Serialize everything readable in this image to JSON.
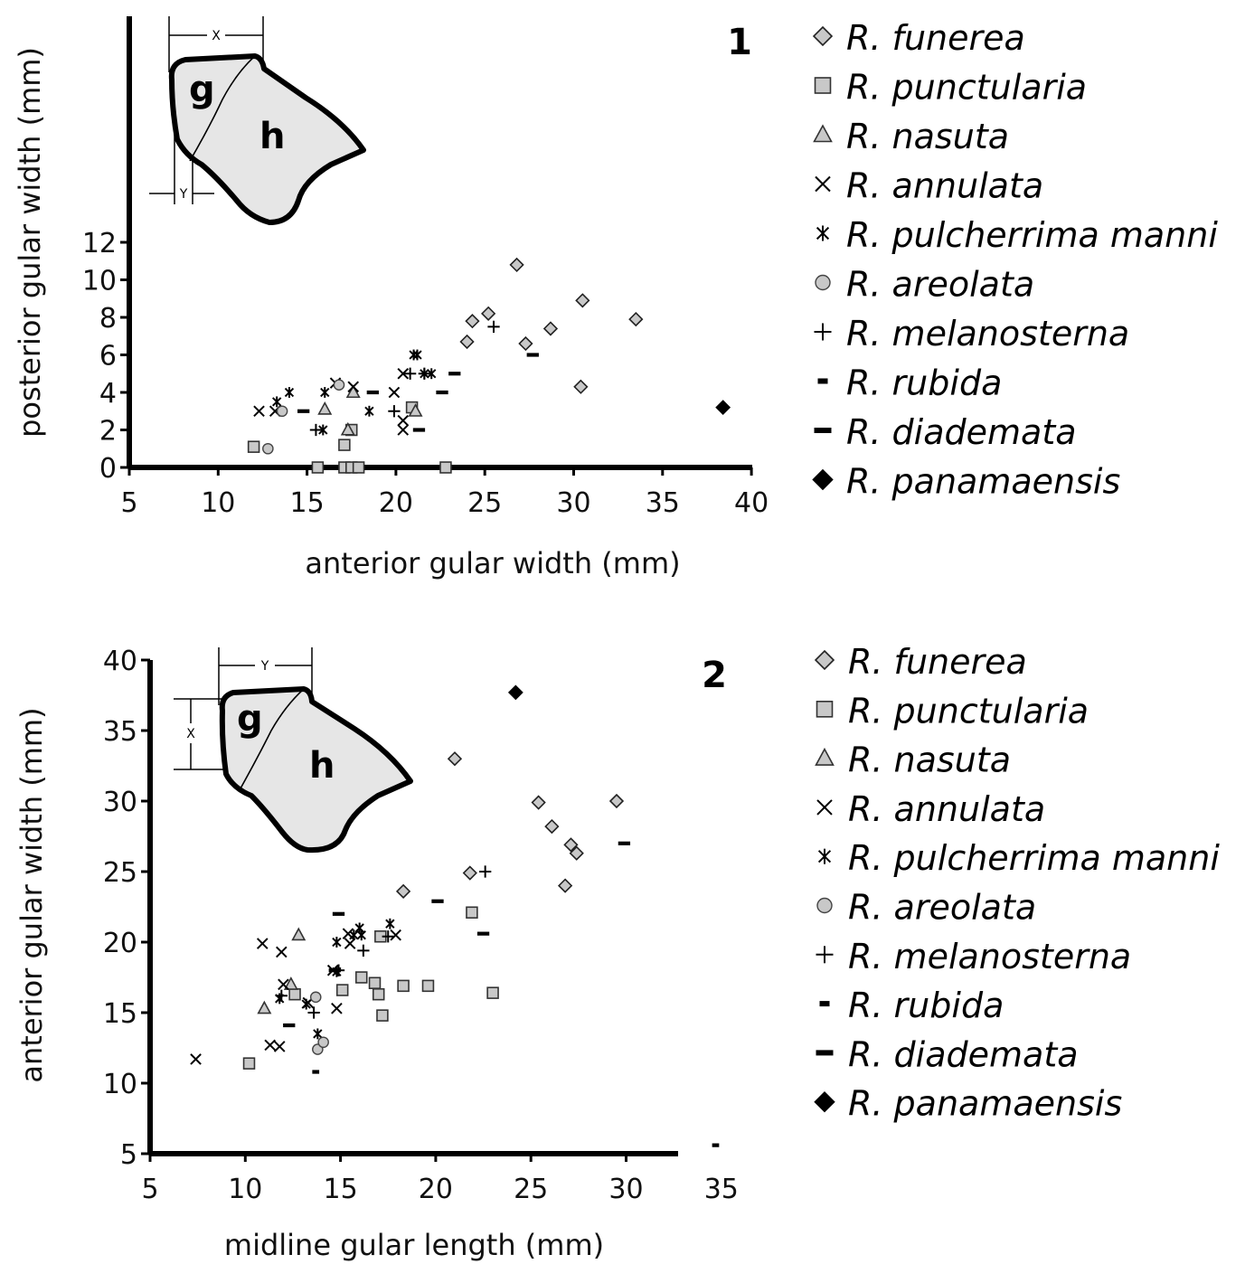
{
  "legend_labels": {
    "funerea": "R. funerea",
    "punctularia": "R. punctularia",
    "nasuta": "R. nasuta",
    "annulata": "R. annulata",
    "pulcherrima": "R. pulcherrima manni",
    "areolata": "R. areolata",
    "melanosterna": "R. melanosterna",
    "rubida": "R. rubida",
    "diademata": "R. diademata",
    "panamaensis": "R. panamaensis"
  },
  "colors": {
    "light_fill": "#c8c8c8",
    "inset_fill": "#e6e6e6",
    "dark": "#000000"
  },
  "chart_data": [
    {
      "type": "scatter",
      "panel_label": "1",
      "xlabel": "anterior gular width (mm)",
      "ylabel": "posterior gular width (mm)",
      "xlim": [
        5,
        40
      ],
      "ylim": [
        0,
        12
      ],
      "xticks": [
        5,
        10,
        15,
        20,
        25,
        30,
        35,
        40
      ],
      "yticks": [
        0,
        2,
        4,
        6,
        8,
        10,
        12
      ],
      "inset": {
        "region_labels": [
          "g",
          "h"
        ],
        "dim_labels": [
          "X",
          "Y"
        ]
      },
      "legend_position": "right",
      "series": [
        {
          "key": "funerea",
          "marker": "diamond",
          "points": [
            [
              24.3,
              7.8
            ],
            [
              25.2,
              8.2
            ],
            [
              26.8,
              10.8
            ],
            [
              24,
              6.7
            ],
            [
              27.3,
              6.6
            ],
            [
              28.7,
              7.4
            ],
            [
              30.5,
              8.9
            ],
            [
              33.5,
              7.9
            ],
            [
              30.4,
              4.3
            ]
          ]
        },
        {
          "key": "punctularia",
          "marker": "square",
          "points": [
            [
              12,
              1.1
            ],
            [
              17.1,
              1.2
            ],
            [
              17.5,
              2
            ],
            [
              20.9,
              3.2
            ],
            [
              15.6,
              0
            ],
            [
              17.1,
              0
            ],
            [
              17.5,
              0
            ],
            [
              17.9,
              0
            ],
            [
              22.8,
              0
            ]
          ]
        },
        {
          "key": "nasuta",
          "marker": "triangle",
          "points": [
            [
              16,
              3.1
            ],
            [
              17.6,
              4
            ],
            [
              17.3,
              2
            ],
            [
              21.1,
              3
            ]
          ]
        },
        {
          "key": "annulata",
          "marker": "x",
          "points": [
            [
              12.3,
              3
            ],
            [
              13.2,
              3
            ],
            [
              16.6,
              4.5
            ],
            [
              17.6,
              4.3
            ],
            [
              19.9,
              4
            ],
            [
              20.4,
              2.5
            ],
            [
              20.4,
              2
            ],
            [
              20.4,
              5
            ]
          ]
        },
        {
          "key": "pulcherrima",
          "marker": "asterisk",
          "points": [
            [
              13.3,
              3.5
            ],
            [
              14,
              4
            ],
            [
              16,
              4
            ],
            [
              15.9,
              2
            ],
            [
              18.5,
              3
            ],
            [
              21,
              6
            ],
            [
              21.2,
              6
            ],
            [
              21.6,
              5
            ],
            [
              22,
              5
            ]
          ]
        },
        {
          "key": "areolata",
          "marker": "circle",
          "points": [
            [
              13.6,
              3
            ],
            [
              12.8,
              1
            ],
            [
              16.8,
              4.4
            ]
          ]
        },
        {
          "key": "melanosterna",
          "marker": "plus",
          "points": [
            [
              25.5,
              7.5
            ],
            [
              15.5,
              2
            ],
            [
              20.8,
              5
            ],
            [
              19.9,
              3
            ],
            [
              21.6,
              5
            ]
          ]
        },
        {
          "key": "rubida",
          "marker": "smalldash",
          "points": [
            [
              11.5,
              0
            ]
          ]
        },
        {
          "key": "diademata",
          "marker": "dash",
          "points": [
            [
              27.7,
              6
            ],
            [
              23.3,
              5
            ],
            [
              22.6,
              4
            ],
            [
              18.7,
              4
            ],
            [
              14.8,
              3
            ],
            [
              21.3,
              2
            ]
          ]
        },
        {
          "key": "panamaensis",
          "marker": "filldiamond",
          "points": [
            [
              38.4,
              3.2
            ]
          ]
        }
      ]
    },
    {
      "type": "scatter",
      "panel_label": "2",
      "xlabel": "midline gular length (mm)",
      "ylabel": "anterior gular width (mm)",
      "xlim": [
        5,
        35
      ],
      "ylim": [
        5,
        40
      ],
      "xticks": [
        5,
        10,
        15,
        20,
        25,
        30,
        35
      ],
      "yticks": [
        5,
        10,
        15,
        20,
        25,
        30,
        35,
        40
      ],
      "inset": {
        "region_labels": [
          "g",
          "h"
        ],
        "dim_labels": [
          "Y",
          "X"
        ]
      },
      "legend_position": "right",
      "series": [
        {
          "key": "funerea",
          "marker": "diamond",
          "points": [
            [
              21,
              33
            ],
            [
              25.4,
              29.9
            ],
            [
              26.1,
              28.2
            ],
            [
              27.1,
              26.9
            ],
            [
              27.4,
              26.3
            ],
            [
              26.8,
              24
            ],
            [
              29.5,
              30
            ],
            [
              21.8,
              24.9
            ],
            [
              18.3,
              23.6
            ]
          ]
        },
        {
          "key": "punctularia",
          "marker": "square",
          "points": [
            [
              10.2,
              11.4
            ],
            [
              12.6,
              16.3
            ],
            [
              15.1,
              16.6
            ],
            [
              16.1,
              17.5
            ],
            [
              16.8,
              17.1
            ],
            [
              17,
              16.3
            ],
            [
              17.2,
              14.8
            ],
            [
              17.1,
              20.4
            ],
            [
              18.3,
              16.9
            ],
            [
              19.6,
              16.9
            ],
            [
              21.9,
              22.1
            ],
            [
              23,
              16.4
            ]
          ]
        },
        {
          "key": "nasuta",
          "marker": "triangle",
          "points": [
            [
              12.8,
              20.5
            ],
            [
              12.4,
              17
            ],
            [
              11,
              15.3
            ]
          ]
        },
        {
          "key": "annulata",
          "marker": "x",
          "points": [
            [
              7.4,
              11.7
            ],
            [
              10.9,
              19.9
            ],
            [
              11.9,
              19.3
            ],
            [
              12,
              17
            ],
            [
              11.3,
              12.7
            ],
            [
              11.8,
              12.6
            ],
            [
              13.3,
              15.7
            ],
            [
              14.6,
              18
            ],
            [
              15.4,
              20.6
            ],
            [
              15.5,
              19.9
            ],
            [
              17.9,
              20.5
            ],
            [
              14.8,
              15.3
            ]
          ]
        },
        {
          "key": "pulcherrima",
          "marker": "asterisk",
          "points": [
            [
              11.8,
              16
            ],
            [
              13.2,
              15.6
            ],
            [
              14.8,
              17.9
            ],
            [
              14.8,
              20
            ],
            [
              15.7,
              20.5
            ],
            [
              16,
              21
            ],
            [
              16.1,
              20.5
            ],
            [
              17.6,
              21.3
            ],
            [
              13.8,
              13.5
            ]
          ]
        },
        {
          "key": "areolata",
          "marker": "circle",
          "points": [
            [
              13.7,
              16.1
            ],
            [
              13.8,
              12.4
            ],
            [
              14.1,
              12.9
            ]
          ]
        },
        {
          "key": "melanosterna",
          "marker": "plus",
          "points": [
            [
              22.6,
              25
            ],
            [
              17.5,
              20.4
            ],
            [
              16.2,
              19.4
            ],
            [
              13.6,
              15
            ],
            [
              14.9,
              18
            ],
            [
              11.9,
              16.2
            ]
          ]
        },
        {
          "key": "rubida",
          "marker": "smalldash",
          "points": [
            [
              13.7,
              10.8
            ],
            [
              34.7,
              5.6
            ]
          ]
        },
        {
          "key": "diademata",
          "marker": "dash",
          "points": [
            [
              29.9,
              27
            ],
            [
              20.1,
              22.9
            ],
            [
              22.5,
              20.6
            ],
            [
              14.9,
              22
            ],
            [
              14.7,
              18
            ],
            [
              12.3,
              14.1
            ]
          ]
        },
        {
          "key": "panamaensis",
          "marker": "filldiamond",
          "points": [
            [
              24.2,
              37.7
            ]
          ]
        }
      ]
    }
  ]
}
